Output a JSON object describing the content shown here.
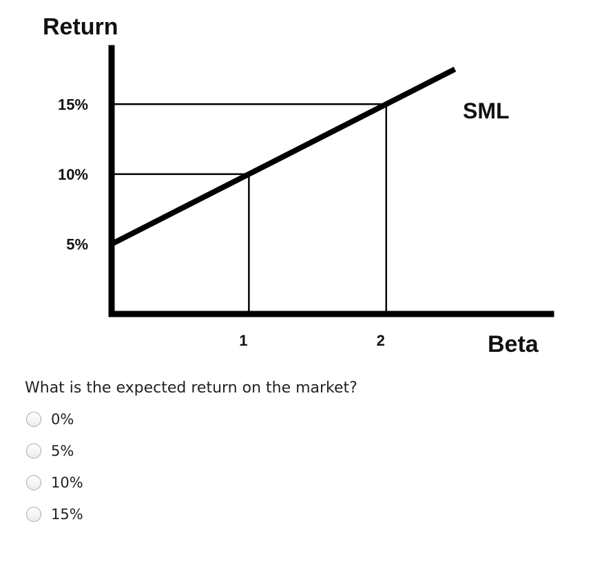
{
  "chart_data": {
    "type": "line",
    "ylabel": "Return",
    "xlabel": "Beta",
    "y_ticks": [
      "5%",
      "10%",
      "15%"
    ],
    "y_tick_values": [
      5,
      10,
      15
    ],
    "x_ticks": [
      "1",
      "2"
    ],
    "x_tick_values": [
      1,
      2
    ],
    "xlim": [
      0,
      3.2
    ],
    "ylim": [
      0,
      19
    ],
    "series": [
      {
        "name": "SML",
        "x": [
          0,
          2.5
        ],
        "y": [
          5,
          17.5
        ]
      }
    ],
    "reference_points": [
      {
        "x": 1,
        "y": 10
      },
      {
        "x": 2,
        "y": 15
      }
    ],
    "grid": false
  },
  "question": {
    "text": "What is the expected return on the market?",
    "options": [
      {
        "label": "0%"
      },
      {
        "label": "5%"
      },
      {
        "label": "10%"
      },
      {
        "label": "15%"
      }
    ]
  }
}
